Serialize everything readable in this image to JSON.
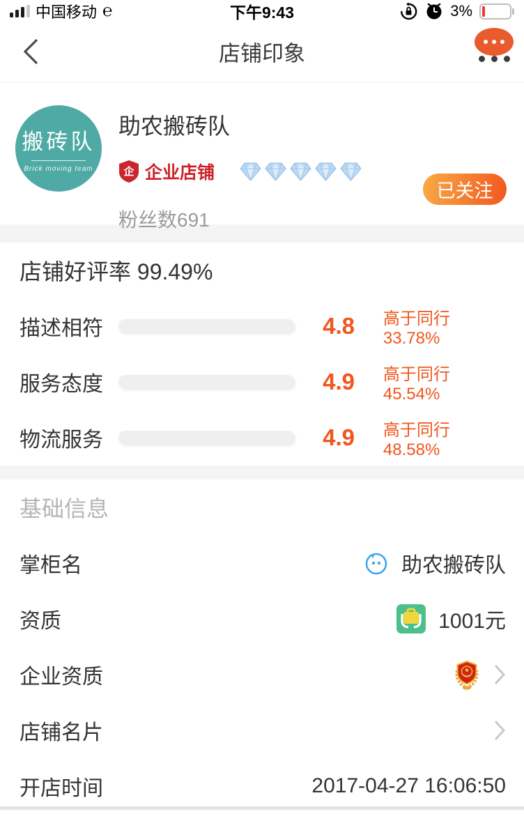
{
  "status_bar": {
    "carrier": "中国移动",
    "time": "下午9:43",
    "battery_percent": "3%"
  },
  "header": {
    "title": "店铺印象"
  },
  "shop": {
    "logo_text": "搬砖队",
    "logo_subtext": "Brick moving team",
    "name": "助农搬砖队",
    "badge_label": "企业店铺",
    "diamond_count": 5,
    "fans_label": "粉丝数691",
    "follow_button": "已关注"
  },
  "ratings": {
    "title": "店铺好评率 99.49%",
    "max_score": 5,
    "rows": [
      {
        "label": "描述相符",
        "score": 4.8,
        "compare": "高于同行33.78%"
      },
      {
        "label": "服务态度",
        "score": 4.9,
        "compare": "高于同行45.54%"
      },
      {
        "label": "物流服务",
        "score": 4.9,
        "compare": "高于同行48.58%"
      }
    ]
  },
  "info": {
    "section_title": "基础信息",
    "rows": [
      {
        "label": "掌柜名",
        "value": "助农搬砖队"
      },
      {
        "label": "资质",
        "value": "1001元"
      },
      {
        "label": "企业资质",
        "value": ""
      },
      {
        "label": "店铺名片",
        "value": ""
      },
      {
        "label": "开店时间",
        "value": "2017-04-27 16:06:50"
      }
    ]
  },
  "colors": {
    "accent_orange": "#f2571f",
    "score_orange": "#f0561d",
    "badge_red": "#cc2227",
    "logo_teal": "#4fa9a4",
    "float_button_orange": "#e95a2c",
    "bar_gradient": [
      "#abdb42",
      "#f2cb4c",
      "#ed6c1f"
    ],
    "battery_low_red": "#ef3b2f"
  }
}
